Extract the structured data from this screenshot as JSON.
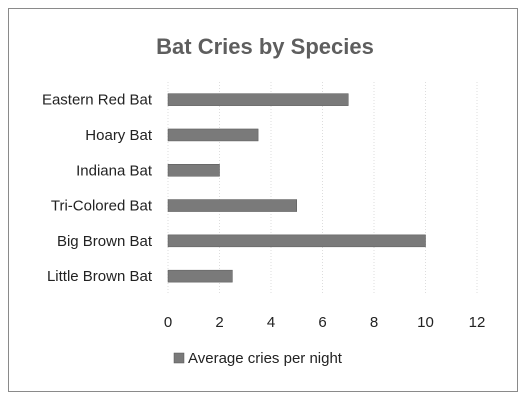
{
  "chart_data": {
    "type": "bar",
    "orientation": "horizontal",
    "title": "Bat Cries by Species",
    "categories": [
      "Eastern Red Bat",
      "Hoary Bat",
      "Indiana Bat",
      "Tri-Colored Bat",
      "Big Brown Bat",
      "Little Brown Bat"
    ],
    "series": [
      {
        "name": "Average cries per night",
        "values": [
          7,
          3.5,
          2,
          5,
          10,
          2.5
        ],
        "color": "#7a7a7a"
      }
    ],
    "xlim": [
      0,
      12
    ],
    "xticks": [
      "0",
      "2",
      "4",
      "6",
      "8",
      "10",
      "12"
    ],
    "grid": true,
    "legend": "bottom"
  }
}
